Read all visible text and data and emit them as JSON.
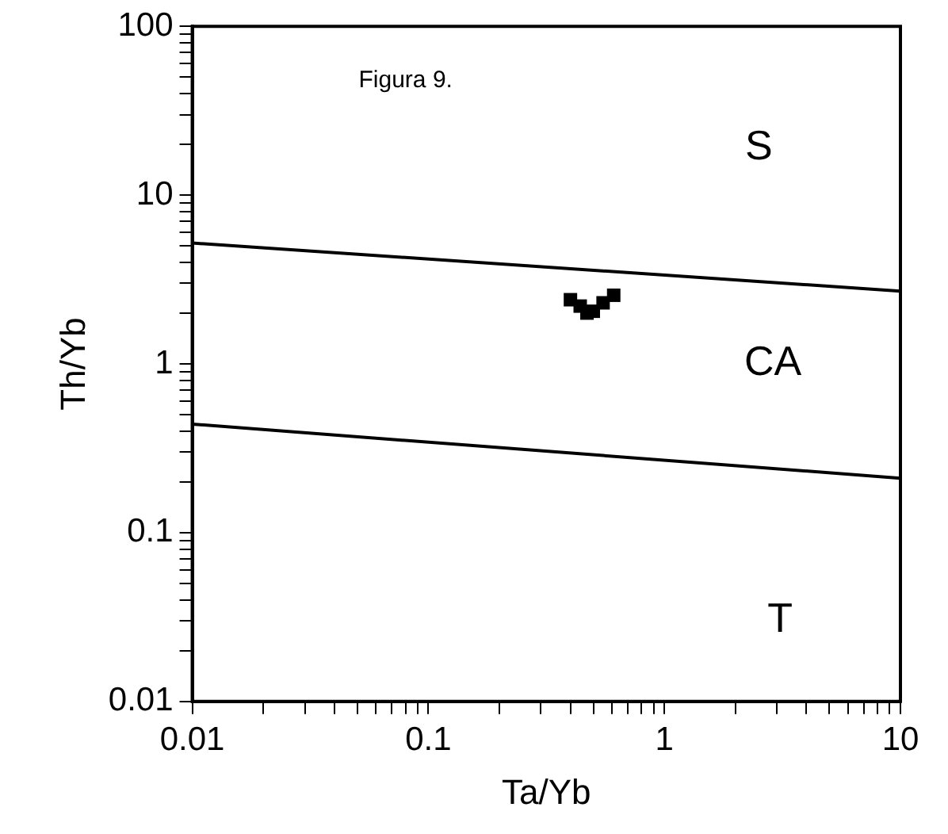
{
  "chart_data": {
    "type": "scatter",
    "xlabel": "Ta/Yb",
    "ylabel": "Th/Yb",
    "log": "xy",
    "xlim": [
      0.01,
      10
    ],
    "ylim": [
      0.01,
      100
    ],
    "xticks": [
      0.01,
      {
        "value": 0.02,
        "label": null
      },
      {
        "value": 0.03,
        "label": null
      },
      {
        "value": 0.04,
        "label": null
      },
      {
        "value": 0.05,
        "label": null
      },
      {
        "value": 0.06,
        "label": null
      },
      {
        "value": 0.07,
        "label": null
      },
      {
        "value": 0.08,
        "label": null
      },
      {
        "value": 0.09,
        "label": null
      },
      0.1,
      {
        "value": 0.2,
        "label": null
      },
      {
        "value": 0.3,
        "label": null
      },
      {
        "value": 0.4,
        "label": null
      },
      {
        "value": 0.5,
        "label": null
      },
      {
        "value": 0.6,
        "label": null
      },
      {
        "value": 0.7,
        "label": null
      },
      {
        "value": 0.8,
        "label": null
      },
      {
        "value": 0.9,
        "label": null
      },
      1,
      {
        "value": 2,
        "label": null
      },
      {
        "value": 3,
        "label": null
      },
      {
        "value": 4,
        "label": null
      },
      {
        "value": 5,
        "label": null
      },
      {
        "value": 6,
        "label": null
      },
      {
        "value": 7,
        "label": null
      },
      {
        "value": 8,
        "label": null
      },
      {
        "value": 9,
        "label": null
      },
      10
    ],
    "yticks": [
      0.01,
      {
        "value": 0.02,
        "label": null
      },
      {
        "value": 0.03,
        "label": null
      },
      {
        "value": 0.04,
        "label": null
      },
      {
        "value": 0.05,
        "label": null
      },
      {
        "value": 0.06,
        "label": null
      },
      {
        "value": 0.07,
        "label": null
      },
      {
        "value": 0.08,
        "label": null
      },
      {
        "value": 0.09,
        "label": null
      },
      0.1,
      {
        "value": 0.2,
        "label": null
      },
      {
        "value": 0.3,
        "label": null
      },
      {
        "value": 0.4,
        "label": null
      },
      {
        "value": 0.5,
        "label": null
      },
      {
        "value": 0.6,
        "label": null
      },
      {
        "value": 0.7,
        "label": null
      },
      {
        "value": 0.8,
        "label": null
      },
      {
        "value": 0.9,
        "label": null
      },
      1,
      {
        "value": 2,
        "label": null
      },
      {
        "value": 3,
        "label": null
      },
      {
        "value": 4,
        "label": null
      },
      {
        "value": 5,
        "label": null
      },
      {
        "value": 6,
        "label": null
      },
      {
        "value": 7,
        "label": null
      },
      {
        "value": 8,
        "label": null
      },
      {
        "value": 9,
        "label": null
      },
      10,
      {
        "value": 20,
        "label": null
      },
      {
        "value": 30,
        "label": null
      },
      {
        "value": 40,
        "label": null
      },
      {
        "value": 50,
        "label": null
      },
      {
        "value": 60,
        "label": null
      },
      {
        "value": 70,
        "label": null
      },
      {
        "value": 80,
        "label": null
      },
      {
        "value": 90,
        "label": null
      },
      100
    ],
    "series": [
      {
        "marker": "square",
        "color": "#000000",
        "x": [
          0.4,
          0.44,
          0.47,
          0.5,
          0.55,
          0.61
        ],
        "values": [
          2.4,
          2.2,
          2.0,
          2.05,
          2.3,
          2.55
        ]
      },
      {
        "type": "line",
        "color": "#000000",
        "x": [
          0.01,
          10
        ],
        "values": [
          5.2,
          2.7
        ]
      },
      {
        "type": "line",
        "color": "#000000",
        "x": [
          0.01,
          10
        ],
        "values": [
          0.44,
          0.21
        ]
      }
    ],
    "annotations": [
      "Figura 9.",
      "S",
      "CA",
      "T"
    ]
  }
}
